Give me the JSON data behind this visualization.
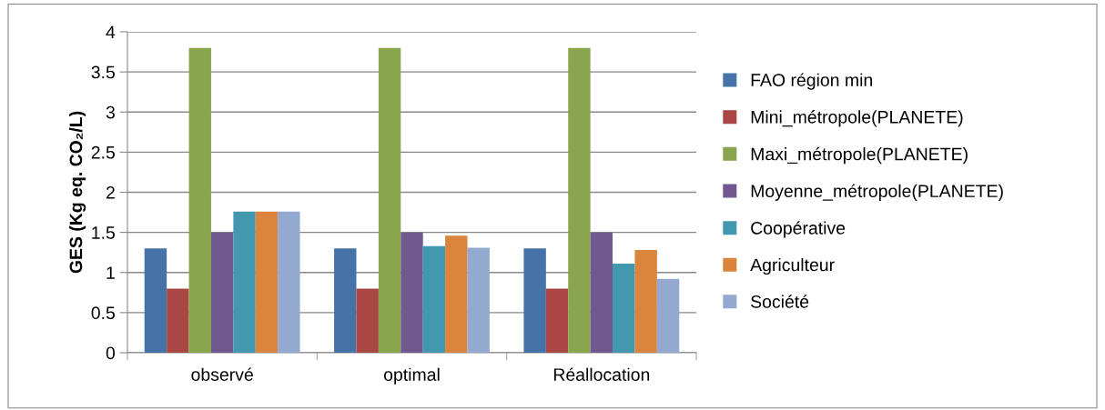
{
  "chart_data": {
    "type": "bar",
    "ylabel": "GES (Kg eq. CO₂/L)",
    "categories": [
      "observé",
      "optimal",
      "Réallocation"
    ],
    "series": [
      {
        "name": "FAO région min",
        "color": "#4572a7",
        "values": [
          1.3,
          1.3,
          1.3
        ]
      },
      {
        "name": "Mini_métropole(PLANETE)",
        "color": "#aa4643",
        "values": [
          0.8,
          0.8,
          0.8
        ]
      },
      {
        "name": "Maxi_métropole(PLANETE)",
        "color": "#89a54e",
        "values": [
          3.8,
          3.8,
          3.8
        ]
      },
      {
        "name": "Moyenne_métropole(PLANETE)",
        "color": "#71588f",
        "values": [
          1.5,
          1.5,
          1.5
        ]
      },
      {
        "name": "Coopérative",
        "color": "#4198af",
        "values": [
          1.76,
          1.33,
          1.11
        ]
      },
      {
        "name": "Agriculteur",
        "color": "#db843d",
        "values": [
          1.76,
          1.46,
          1.28
        ]
      },
      {
        "name": "Société",
        "color": "#93a9cf",
        "values": [
          1.76,
          1.31,
          0.92
        ]
      }
    ],
    "ylim": [
      0,
      4
    ],
    "yticks": [
      0,
      0.5,
      1,
      1.5,
      2,
      2.5,
      3,
      3.5,
      4
    ],
    "grid": "y",
    "legend": "right"
  }
}
